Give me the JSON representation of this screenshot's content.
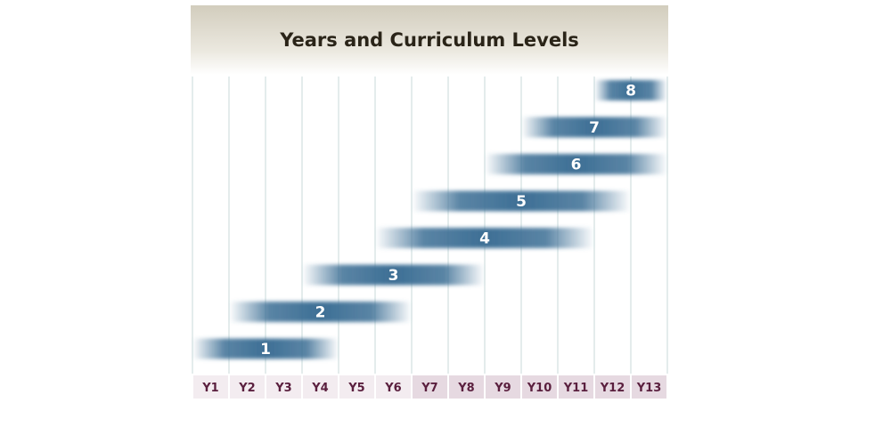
{
  "chart_data": {
    "type": "bar",
    "title": "Years and Curriculum Levels",
    "categories": [
      "Y1",
      "Y2",
      "Y3",
      "Y4",
      "Y5",
      "Y6",
      "Y7",
      "Y8",
      "Y9",
      "Y10",
      "Y11",
      "Y12",
      "Y13"
    ],
    "series": [
      {
        "name": "1",
        "start": 1,
        "end": 4
      },
      {
        "name": "2",
        "start": 2,
        "end": 6
      },
      {
        "name": "3",
        "start": 4,
        "end": 8
      },
      {
        "name": "4",
        "start": 6,
        "end": 11
      },
      {
        "name": "5",
        "start": 7,
        "end": 12
      },
      {
        "name": "6",
        "start": 9,
        "end": 13
      },
      {
        "name": "7",
        "start": 10,
        "end": 13
      },
      {
        "name": "8",
        "start": 12,
        "end": 13
      }
    ],
    "xlabel": "",
    "ylabel": "",
    "grid": true,
    "colors": {
      "bar": "#3d6f95",
      "grid": "#c9dada",
      "title_band": "#d6d1c2",
      "year_label_light": "#f3ecf0",
      "year_label_dark": "#e6d9e1",
      "year_text": "#5a1f3e"
    }
  }
}
